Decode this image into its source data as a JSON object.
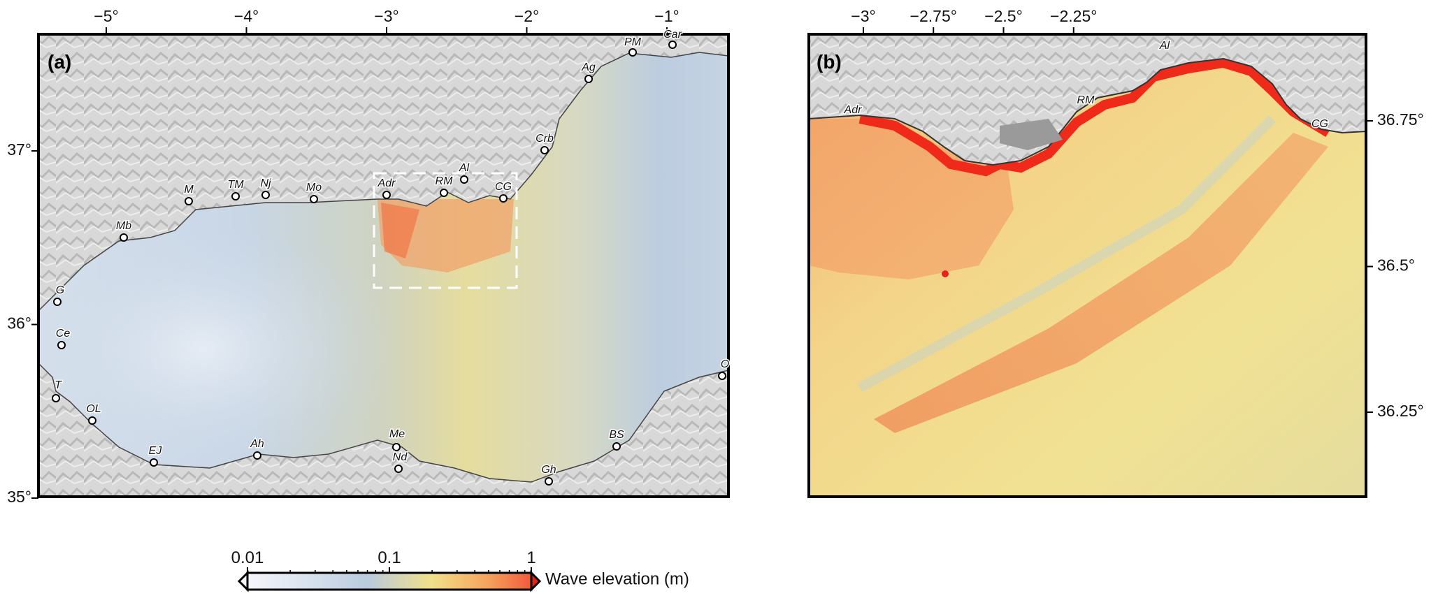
{
  "panels": {
    "a": {
      "label": "(a)",
      "lon_ticks": [
        {
          "value": -5,
          "label": "−5°"
        },
        {
          "value": -4,
          "label": "−4°"
        },
        {
          "value": -3,
          "label": "−3°"
        },
        {
          "value": -2,
          "label": "−2°"
        },
        {
          "value": -1,
          "label": "−1°"
        }
      ],
      "lat_ticks": [
        {
          "value": 37,
          "label": "37°"
        },
        {
          "value": 36,
          "label": "36°"
        },
        {
          "value": 35,
          "label": "35°"
        }
      ],
      "places": [
        {
          "code": "PM"
        },
        {
          "code": "Car"
        },
        {
          "code": "Ag"
        },
        {
          "code": "Crb"
        },
        {
          "code": "M"
        },
        {
          "code": "TM"
        },
        {
          "code": "Nj"
        },
        {
          "code": "Mo"
        },
        {
          "code": "Adr"
        },
        {
          "code": "RM"
        },
        {
          "code": "Al"
        },
        {
          "code": "CG"
        },
        {
          "code": "Mb"
        },
        {
          "code": "G"
        },
        {
          "code": "Ce"
        },
        {
          "code": "T"
        },
        {
          "code": "OL"
        },
        {
          "code": "EJ"
        },
        {
          "code": "Ah"
        },
        {
          "code": "Me"
        },
        {
          "code": "Nd"
        },
        {
          "code": "Gh"
        },
        {
          "code": "BS"
        },
        {
          "code": "O"
        }
      ]
    },
    "b": {
      "label": "(b)",
      "lon_ticks": [
        {
          "value": -3,
          "label": "−3°"
        },
        {
          "value": -2.75,
          "label": "−2.75°"
        },
        {
          "value": -2.5,
          "label": "−2.5°"
        },
        {
          "value": -2.25,
          "label": "−2.25°"
        }
      ],
      "lat_ticks": [
        {
          "value": 36.75,
          "label": "36.75°"
        },
        {
          "value": 36.5,
          "label": "36.5°"
        },
        {
          "value": 36.25,
          "label": "36.25°"
        }
      ],
      "places": [
        {
          "code": "Adr"
        },
        {
          "code": "RM"
        },
        {
          "code": "Al"
        },
        {
          "code": "CG"
        }
      ]
    }
  },
  "colorbar": {
    "title": "Wave elevation (m)",
    "scale": "log",
    "ticks": [
      {
        "value": 0.01,
        "label": "0.01"
      },
      {
        "value": 0.1,
        "label": "0.1"
      },
      {
        "value": 1,
        "label": "1"
      }
    ],
    "colors": [
      "#f4f6fa",
      "#b9cbe0",
      "#f2e08a",
      "#f5a25e",
      "#f25a3c"
    ],
    "overflow_color": "#e8201a"
  },
  "colors": {
    "land": "#d4d4d4",
    "low_sea": "#c4d3e4",
    "mid_sea": "#f0e092",
    "high": "#f47a4e",
    "extreme": "#f01e12"
  }
}
